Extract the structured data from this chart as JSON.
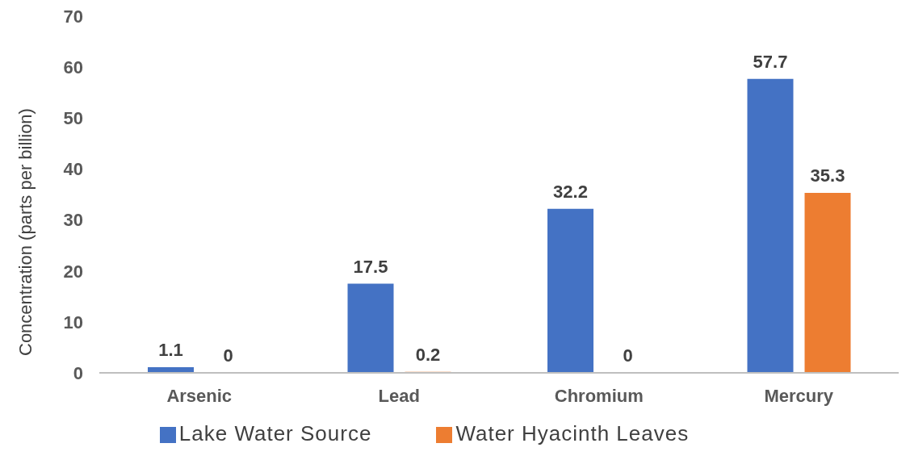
{
  "chart_data": {
    "type": "bar",
    "ylabel": "Concentration (parts per billion)",
    "categories": [
      "Arsenic",
      "Lead",
      "Chromium",
      "Mercury"
    ],
    "series": [
      {
        "name": "Lake Water Source",
        "color": "#4472c4",
        "values": [
          1.1,
          17.5,
          32.2,
          57.7
        ]
      },
      {
        "name": "Water Hyacinth Leaves",
        "color": "#ed7d31",
        "values": [
          0,
          0.2,
          0,
          35.3
        ]
      }
    ],
    "ylim": [
      0,
      70
    ],
    "yticks": [
      0,
      10,
      20,
      30,
      40,
      50,
      60,
      70
    ],
    "grid": false,
    "legend": "bottom",
    "data_labels": true
  }
}
